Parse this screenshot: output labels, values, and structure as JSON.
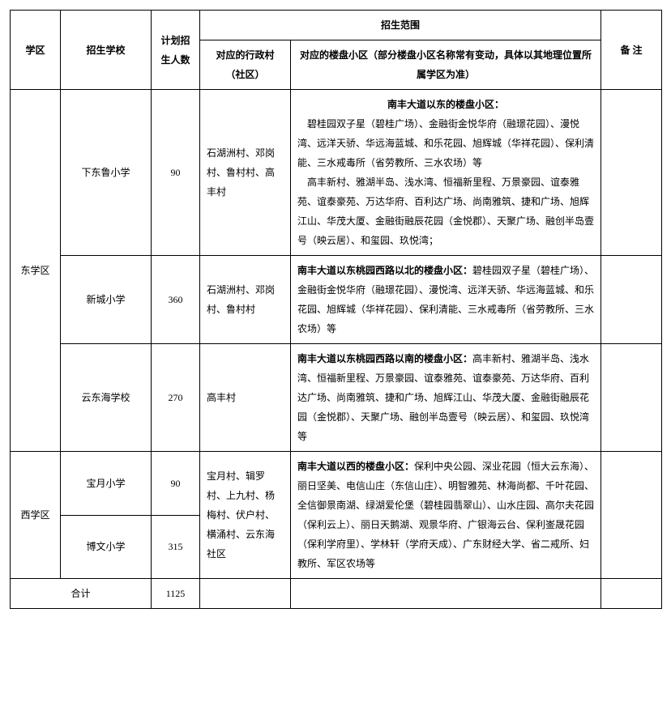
{
  "header": {
    "district": "学区",
    "school": "招生学校",
    "plan": "计划招生人数",
    "scope": "招生范围",
    "village": "对应的行政村（社区）",
    "blocks": "对应的楼盘小区（部分楼盘小区名称常有变动，具体以其地理位置所属学区为准）",
    "remark": "备 注"
  },
  "districts": [
    {
      "name": "东学区",
      "rowspan": 3
    },
    {
      "name": "西学区",
      "rowspan": 2
    }
  ],
  "rows": [
    {
      "school": "下东鲁小学",
      "plan": "90",
      "village": "石湖洲村、邓岗村、鲁村村、高丰村",
      "lead": "南丰大道以东的楼盘小区：",
      "body": "　碧桂园双子星（碧桂广场）、金融街金悦华府（融璟花园）、漫悦湾、远洋天骄、华远海蓝城、和乐花园、旭辉城（华祥花园）、保利清能、三水戒毒所（省劳教所、三水农场）等\n　高丰新村、雅湖半岛、浅水湾、恒福新里程、万景豪园、谊泰雅苑、谊泰豪苑、万达华府、百利达广场、尚南雅筑、捷和广场、旭辉江山、华茂大厦、金融街融辰花园（金悦郡）、天聚广场、融创半岛壹号（映云居）、和玺园、玖悦湾；"
    },
    {
      "school": "新城小学",
      "plan": "360",
      "village": "石湖洲村、邓岗村、鲁村村",
      "lead": "南丰大道以东桃园西路以北的楼盘小区：",
      "body": "碧桂园双子星（碧桂广场）、金融街金悦华府（融璟花园）、漫悦湾、远洋天骄、华远海蓝城、和乐花园、旭辉城（华祥花园）、保利清能、三水戒毒所（省劳教所、三水农场）等"
    },
    {
      "school": "云东海学校",
      "plan": "270",
      "village": "高丰村",
      "lead": "南丰大道以东桃园西路以南的楼盘小区：",
      "body": "高丰新村、雅湖半岛、浅水湾、恒福新里程、万景豪园、谊泰雅苑、谊泰豪苑、万达华府、百利达广场、尚南雅筑、捷和广场、旭辉江山、华茂大厦、金融街融辰花园（金悦郡）、天聚广场、融创半岛壹号（映云居）、和玺园、玖悦湾等"
    },
    {
      "school": "宝月小学",
      "plan": "90",
      "village": "宝月村、辑罗村、上九村、杨梅村、伏户村、横涌村、云东海社区",
      "village_rowspan": 2,
      "lead": "南丰大道以西的楼盘小区：",
      "body": "保利中央公园、深业花园（恒大云东海）、丽日坚美、电信山庄（东信山庄）、明智雅苑、林海尚都、千叶花园、全信御景南湖、绿湖爱伦堡（碧桂园翡翠山）、山水庄园、高尔夫花园（保利云上）、丽日天鹅湖、观景华府、广银海云台、保利崟晟花园（保利学府里）、学林轩（学府天成）、广东财经大学、省二戒所、妇教所、军区农场等",
      "body_rowspan": 2,
      "remark_rowspan": 2
    },
    {
      "school": "博文小学",
      "plan": "315"
    }
  ],
  "total": {
    "label": "合计",
    "value": "1125"
  }
}
